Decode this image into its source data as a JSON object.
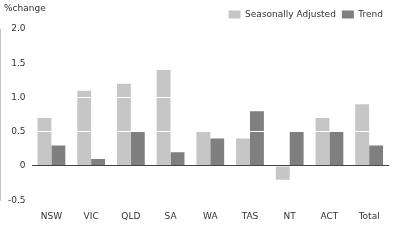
{
  "chart_data": {
    "type": "bar",
    "y_label": "%change",
    "categories": [
      "NSW",
      "VIC",
      "QLD",
      "SA",
      "WA",
      "TAS",
      "NT",
      "ACT",
      "Total"
    ],
    "series": [
      {
        "name": "Seasonally Adjusted",
        "color": "#c6c6c6",
        "values": [
          0.7,
          1.1,
          1.2,
          1.4,
          0.5,
          0.4,
          -0.2,
          0.7,
          0.9
        ]
      },
      {
        "name": "Trend",
        "color": "#7f7f7f",
        "values": [
          0.3,
          0.1,
          0.5,
          0.2,
          0.4,
          0.8,
          0.5,
          0.5,
          0.3
        ]
      }
    ],
    "ylim": [
      -0.5,
      2
    ],
    "yticks": [
      -0.5,
      0,
      0.5,
      {
        "value": 1,
        "label": "1.0"
      },
      1.5,
      {
        "value": 2,
        "label": "2.0"
      }
    ],
    "grid": true,
    "legend": "top-right"
  }
}
